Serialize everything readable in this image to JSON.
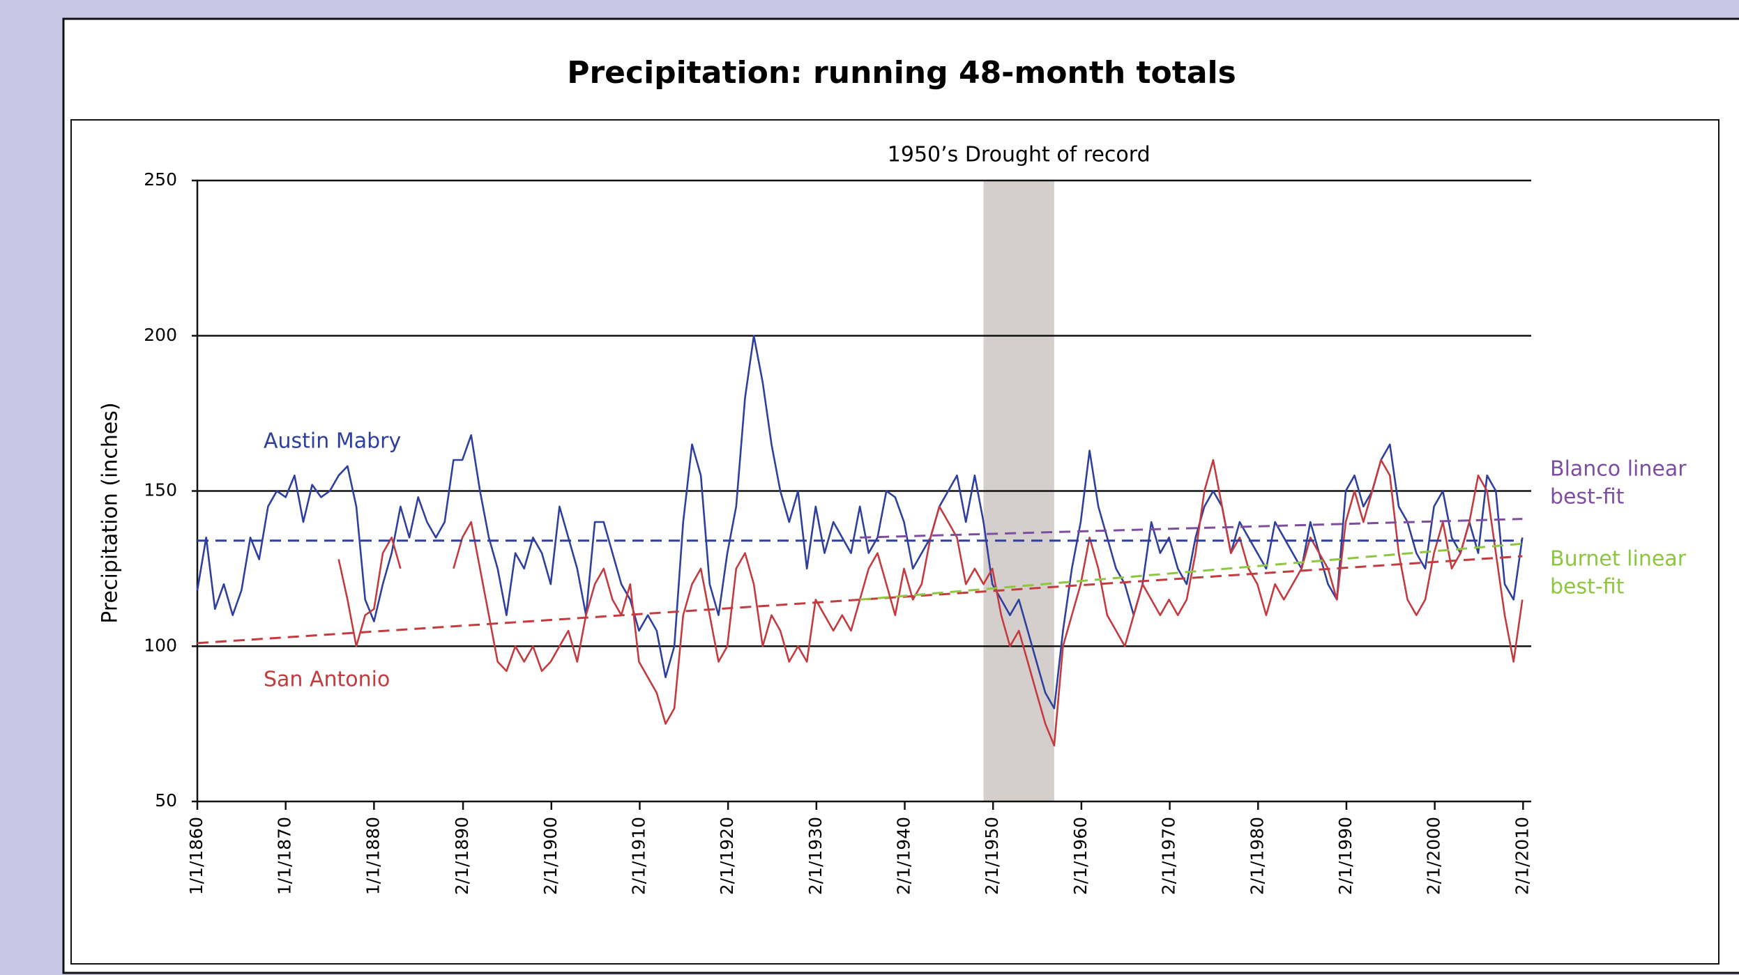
{
  "chart_data": {
    "type": "line",
    "title": "Precipitation: running 48-month totals",
    "y_label": "Precipitation (inches)",
    "annotation": {
      "from": 1949,
      "to": 1957,
      "label": "1950’s Drought of record",
      "color": "#d4cfcd"
    },
    "xlim": [
      1860,
      2011
    ],
    "ylim": [
      50,
      250
    ],
    "yticks": [
      50,
      100,
      150,
      200,
      250
    ],
    "xticks": [
      {
        "value": 1860,
        "label": "1/1/1860"
      },
      {
        "value": 1870,
        "label": "1/1/1870"
      },
      {
        "value": 1880,
        "label": "1/1/1880"
      },
      {
        "value": 1890.08,
        "label": "2/1/1890"
      },
      {
        "value": 1900.08,
        "label": "2/1/1900"
      },
      {
        "value": 1910.08,
        "label": "2/1/1910"
      },
      {
        "value": 1920.08,
        "label": "2/1/1920"
      },
      {
        "value": 1930.08,
        "label": "2/1/1930"
      },
      {
        "value": 1940.08,
        "label": "2/1/1940"
      },
      {
        "value": 1950.08,
        "label": "2/1/1950"
      },
      {
        "value": 1960.08,
        "label": "2/1/1960"
      },
      {
        "value": 1970.08,
        "label": "2/1/1970"
      },
      {
        "value": 1980.08,
        "label": "2/1/1980"
      },
      {
        "value": 1990.08,
        "label": "2/1/1990"
      },
      {
        "value": 2000.08,
        "label": "2/1/2000"
      },
      {
        "value": 2010.08,
        "label": "2/1/2010"
      }
    ],
    "grid": true,
    "x": [
      1860,
      1861,
      1862,
      1863,
      1864,
      1865,
      1866,
      1867,
      1868,
      1869,
      1870,
      1871,
      1872,
      1873,
      1874,
      1875,
      1876,
      1877,
      1878,
      1879,
      1880,
      1881,
      1882,
      1883,
      1884,
      1885,
      1886,
      1887,
      1888,
      1889,
      1890,
      1891,
      1892,
      1893,
      1894,
      1895,
      1896,
      1897,
      1898,
      1899,
      1900,
      1901,
      1902,
      1903,
      1904,
      1905,
      1906,
      1907,
      1908,
      1909,
      1910,
      1911,
      1912,
      1913,
      1914,
      1915,
      1916,
      1917,
      1918,
      1919,
      1920,
      1921,
      1922,
      1923,
      1924,
      1925,
      1926,
      1927,
      1928,
      1929,
      1930,
      1931,
      1932,
      1933,
      1934,
      1935,
      1936,
      1937,
      1938,
      1939,
      1940,
      1941,
      1942,
      1943,
      1944,
      1945,
      1946,
      1947,
      1948,
      1949,
      1950,
      1951,
      1952,
      1953,
      1954,
      1955,
      1956,
      1957,
      1958,
      1959,
      1960,
      1961,
      1962,
      1963,
      1964,
      1965,
      1966,
      1967,
      1968,
      1969,
      1970,
      1971,
      1972,
      1973,
      1974,
      1975,
      1976,
      1977,
      1978,
      1979,
      1980,
      1981,
      1982,
      1983,
      1984,
      1985,
      1986,
      1987,
      1988,
      1989,
      1990,
      1991,
      1992,
      1993,
      1994,
      1995,
      1996,
      1997,
      1998,
      1999,
      2000,
      2001,
      2002,
      2003,
      2004,
      2005,
      2006,
      2007,
      2008,
      2009,
      2010
    ],
    "series": [
      {
        "name": "Austin Mabry",
        "color": "#2e3f9e",
        "values": [
          118,
          135,
          112,
          120,
          110,
          118,
          135,
          128,
          145,
          150,
          148,
          155,
          140,
          152,
          148,
          150,
          155,
          158,
          145,
          115,
          108,
          120,
          130,
          145,
          135,
          148,
          140,
          135,
          140,
          160,
          160,
          168,
          150,
          135,
          125,
          110,
          130,
          125,
          135,
          130,
          120,
          145,
          135,
          125,
          110,
          140,
          140,
          130,
          120,
          115,
          105,
          110,
          105,
          90,
          100,
          140,
          165,
          155,
          120,
          110,
          130,
          145,
          180,
          200,
          185,
          165,
          150,
          140,
          150,
          125,
          145,
          130,
          140,
          135,
          130,
          145,
          130,
          135,
          150,
          148,
          140,
          125,
          130,
          135,
          145,
          150,
          155,
          140,
          155,
          140,
          120,
          115,
          110,
          115,
          105,
          95,
          85,
          80,
          105,
          125,
          140,
          163,
          145,
          135,
          125,
          120,
          110,
          120,
          140,
          130,
          135,
          125,
          120,
          135,
          145,
          150,
          145,
          130,
          140,
          135,
          130,
          125,
          140,
          135,
          130,
          125,
          140,
          130,
          120,
          115,
          150,
          155,
          145,
          150,
          160,
          165,
          145,
          140,
          130,
          125,
          145,
          150,
          135,
          130,
          140,
          130,
          155,
          150,
          120,
          115,
          135
        ]
      },
      {
        "name": "San Antonio",
        "color": "#c43b3f",
        "values": [
          null,
          null,
          null,
          null,
          null,
          null,
          null,
          null,
          null,
          null,
          null,
          null,
          null,
          null,
          null,
          null,
          128,
          115,
          100,
          110,
          112,
          130,
          135,
          125,
          null,
          null,
          null,
          null,
          null,
          125,
          135,
          140,
          125,
          110,
          95,
          92,
          100,
          95,
          100,
          92,
          95,
          100,
          105,
          95,
          110,
          120,
          125,
          115,
          110,
          120,
          95,
          90,
          85,
          75,
          80,
          110,
          120,
          125,
          110,
          95,
          100,
          125,
          130,
          120,
          100,
          110,
          105,
          95,
          100,
          95,
          115,
          110,
          105,
          110,
          105,
          115,
          125,
          130,
          120,
          110,
          125,
          115,
          120,
          135,
          145,
          140,
          135,
          120,
          125,
          120,
          125,
          110,
          100,
          105,
          95,
          85,
          75,
          68,
          100,
          110,
          120,
          135,
          125,
          110,
          105,
          100,
          110,
          120,
          115,
          110,
          115,
          110,
          115,
          130,
          150,
          160,
          145,
          130,
          135,
          125,
          120,
          110,
          120,
          115,
          120,
          125,
          135,
          130,
          125,
          115,
          140,
          150,
          140,
          150,
          160,
          155,
          130,
          115,
          110,
          115,
          130,
          140,
          125,
          130,
          140,
          155,
          150,
          130,
          110,
          95,
          115
        ]
      },
      {
        "color": "#2e3f9e",
        "dashed": true,
        "x": [
          1860,
          2010
        ],
        "values": [
          134,
          134
        ]
      },
      {
        "color": "#c43b3f",
        "dashed": true,
        "x": [
          1860,
          2010
        ],
        "values": [
          101,
          129
        ]
      },
      {
        "name": [
          "Blanco linear",
          "best-fit"
        ],
        "color": "#7d4ea0",
        "dashed": true,
        "x": [
          1935,
          2010
        ],
        "values": [
          135,
          141
        ]
      },
      {
        "name": [
          "Burnet linear",
          "best-fit"
        ],
        "color": "#8dc63f",
        "dashed": true,
        "x": [
          1935,
          2010
        ],
        "values": [
          115,
          133
        ]
      }
    ]
  }
}
